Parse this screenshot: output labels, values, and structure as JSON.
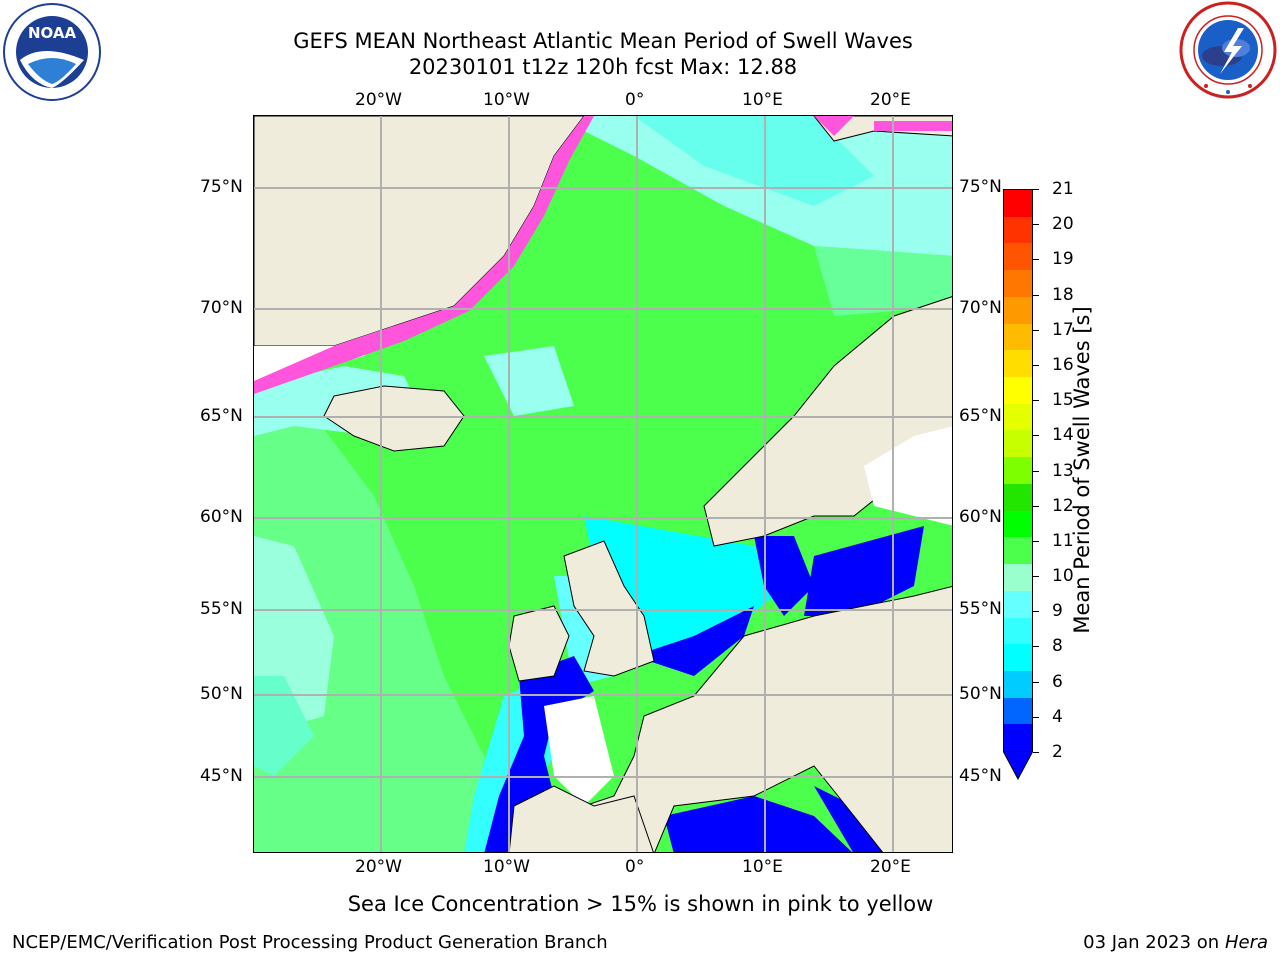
{
  "header": {
    "title_line1": "GEFS MEAN Northeast Atlantic Mean Period of Swell Waves",
    "title_line2": "20230101 t12z 120h fcst   Max: 12.88"
  },
  "logos": {
    "left": {
      "name": "NOAA",
      "ring_text": "NATIONAL OCEANIC AND ATMOSPHERIC ADMINISTRATION · U.S. DEPARTMENT OF COMMERCE"
    },
    "right": {
      "name": "NATIONAL WEATHER SERVICE"
    }
  },
  "map": {
    "top_lon_labels": [
      "20°W",
      "10°W",
      "0°",
      "10°E",
      "20°E"
    ],
    "bottom_lon_labels": [
      "20°W",
      "10°W",
      "0°",
      "10°E",
      "20°E"
    ],
    "left_lat_labels": [
      "75°N",
      "70°N",
      "65°N",
      "60°N",
      "55°N",
      "50°N",
      "45°N"
    ],
    "right_lat_labels": [
      "75°N",
      "70°N",
      "65°N",
      "60°N",
      "55°N",
      "50°N",
      "45°N"
    ],
    "land_color": "#efecdc",
    "ocean_main_color": "#4dff4d"
  },
  "colorbar": {
    "label": "Mean Period of Swell Waves [s]",
    "ticks": [
      "21",
      "20",
      "19",
      "18",
      "17",
      "16",
      "15",
      "14",
      "13",
      "12",
      "11",
      "10",
      "9",
      "8",
      "6",
      "4",
      "2"
    ],
    "colors_top_to_bottom": [
      "#ff0000",
      "#ff3300",
      "#ff5500",
      "#ff7700",
      "#ff9900",
      "#ffbb00",
      "#ffdd00",
      "#ffff00",
      "#e6ff00",
      "#c8ff00",
      "#7dff00",
      "#22e600",
      "#00ff00",
      "#4dff4d",
      "#99ffcc",
      "#66ffff",
      "#33ffff",
      "#00ffff",
      "#00ccff",
      "#0066ff",
      "#0000ff"
    ],
    "extend": "min"
  },
  "caption": "Sea Ice Concentration > 15% is shown in pink to yellow",
  "footer": {
    "left": "NCEP/EMC/Verification Post Processing Product Generation Branch",
    "right_prefix": "03 Jan 2023 on ",
    "right_host": "Hera"
  }
}
